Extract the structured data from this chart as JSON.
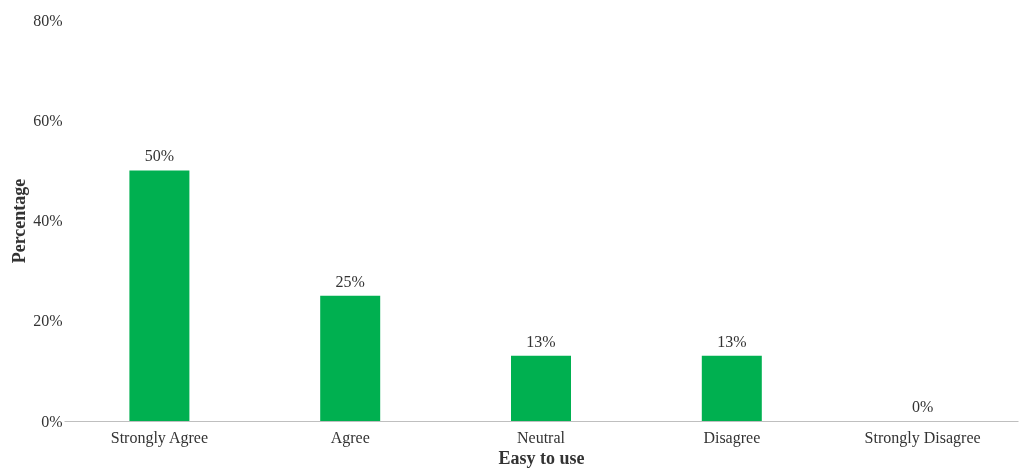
{
  "chart_data": {
    "type": "bar",
    "xlabel": "Easy to use",
    "ylabel": "Percentage",
    "categories": [
      "Strongly Agree",
      "Agree",
      "Neutral",
      "Disagree",
      "Strongly Disagree"
    ],
    "values": [
      50,
      25,
      13,
      13,
      0
    ],
    "color": "#00b050",
    "value_labels": [
      "50%",
      "25%",
      "13%",
      "13%",
      "0%"
    ],
    "ylim": [
      0,
      80
    ],
    "yticks": [
      {
        "value": 0,
        "label": "0%"
      },
      {
        "value": 20,
        "label": "20%"
      },
      {
        "value": 40,
        "label": "40%"
      },
      {
        "value": 60,
        "label": "60%"
      },
      {
        "value": 80,
        "label": "80%"
      }
    ],
    "grid": false
  }
}
